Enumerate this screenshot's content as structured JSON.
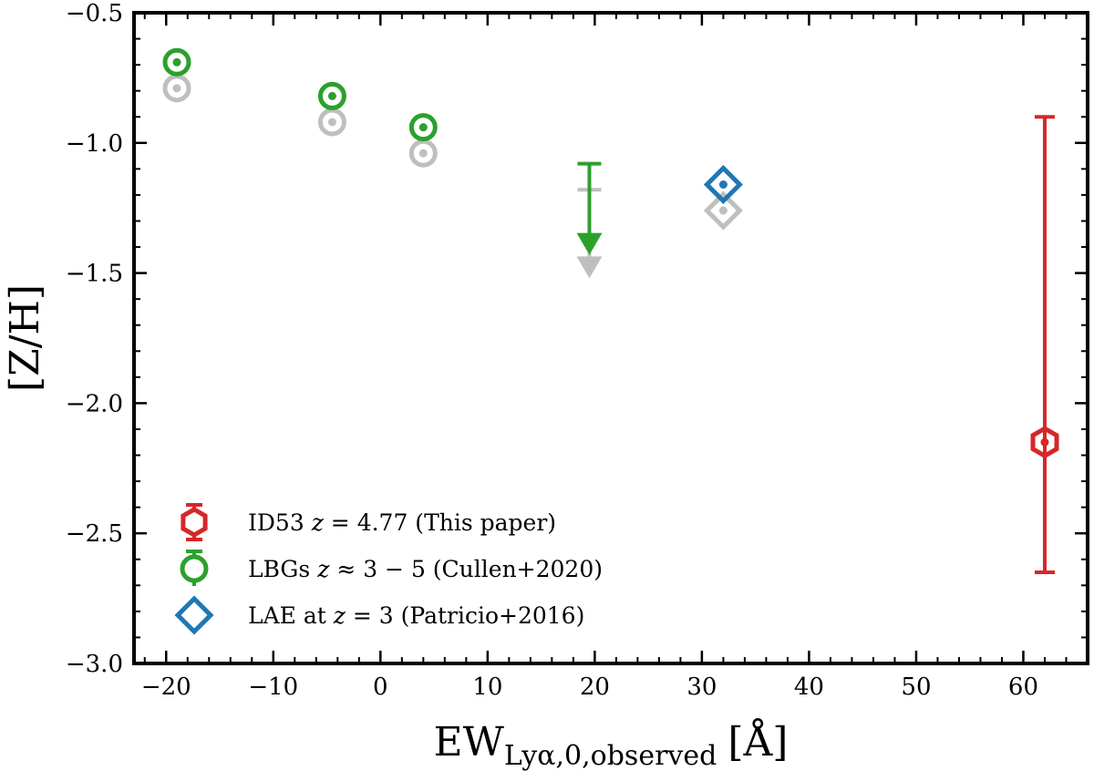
{
  "chart_data": {
    "type": "scatter",
    "title": "",
    "xlabel": {
      "main": "EW",
      "subscript": "Lyα,0,observed",
      "unit": "[Å]"
    },
    "ylabel": "[Z/H]",
    "xlim": [
      -23,
      66
    ],
    "ylim": [
      -3.0,
      -0.5
    ],
    "x_ticks": [
      -20,
      -10,
      0,
      10,
      20,
      30,
      40,
      50,
      60
    ],
    "x_tick_labels": [
      "−20",
      "−10",
      "0",
      "10",
      "20",
      "30",
      "40",
      "50",
      "60"
    ],
    "y_ticks": [
      -3.0,
      -2.5,
      -2.0,
      -1.5,
      -1.0,
      -0.5
    ],
    "y_tick_labels": [
      "−3.0",
      "−2.5",
      "−2.0",
      "−1.5",
      "−1.0",
      "−0.5"
    ],
    "grid": false,
    "legend_position": "bottom-left",
    "series": [
      {
        "name": "ID53 z = 4.77 (This paper)",
        "legend_parts": [
          "ID53 ",
          "z",
          " = 4.77 (This paper)"
        ],
        "color": "#d62728",
        "marker": "hexagon",
        "points": [
          {
            "x": 62,
            "y": -2.15,
            "yerr_low": 0.5,
            "yerr_high": 1.25
          }
        ]
      },
      {
        "name": "LBGs z ≈ 3 − 5 (Cullen+2020)",
        "legend_parts": [
          "LBGs ",
          "z",
          " ≈ 3 − 5 (Cullen+2020)"
        ],
        "color": "#2ca02c",
        "marker": "circle",
        "points": [
          {
            "x": -19,
            "y": -0.69
          },
          {
            "x": -4.5,
            "y": -0.82
          },
          {
            "x": 4,
            "y": -0.94
          }
        ],
        "upper_limits": [
          {
            "x": 19.5,
            "y": -1.08,
            "arrow_to": -1.36
          }
        ]
      },
      {
        "name": "LAE at z = 3 (Patricio+2016)",
        "legend_parts": [
          "LAE at ",
          "z",
          " = 3 (Patricio+2016)"
        ],
        "color": "#1f77b4",
        "marker": "diamond",
        "points": [
          {
            "x": 32,
            "y": -1.16
          }
        ]
      },
      {
        "legend": false,
        "color": "#bfbfbf",
        "marker": "mixed",
        "points": [
          {
            "x": -19,
            "y": -0.79,
            "marker": "circle"
          },
          {
            "x": -4.5,
            "y": -0.92,
            "marker": "circle"
          },
          {
            "x": 4,
            "y": -1.04,
            "marker": "circle"
          },
          {
            "x": 32,
            "y": -1.26,
            "marker": "diamond"
          }
        ],
        "upper_limits": [
          {
            "x": 19.5,
            "y": -1.18,
            "arrow_to": -1.45
          }
        ]
      }
    ]
  }
}
